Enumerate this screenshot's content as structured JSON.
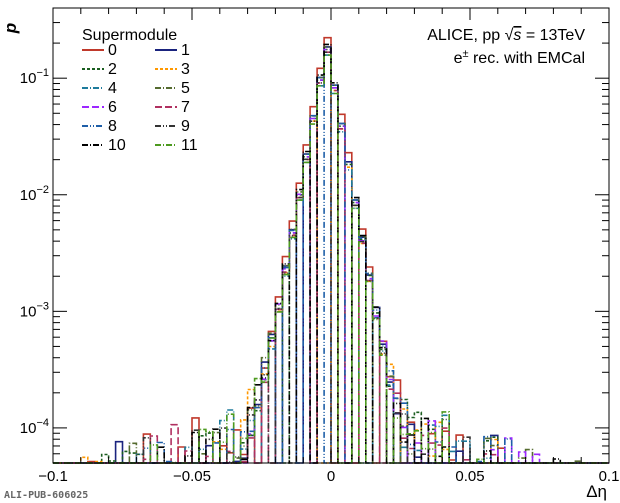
{
  "chart_data": {
    "type": "line",
    "title": "",
    "xlabel": "Δη",
    "ylabel": "p",
    "xlim": [
      -0.1,
      0.1
    ],
    "ylim": [
      5e-05,
      0.4
    ],
    "yscale": "log",
    "x_ticks": [
      -0.1,
      -0.05,
      0,
      0.05,
      0.1
    ],
    "x_tick_labels": [
      "−0.1",
      "−0.05",
      "0",
      "0.05",
      "0.1"
    ],
    "y_ticks": [
      0.0001,
      0.001,
      0.01,
      0.1
    ],
    "y_tick_base": "10",
    "y_tick_exponents": [
      "−4",
      "−3",
      "−2",
      "−1"
    ],
    "grid": false,
    "legend_title": "Supermodule",
    "legend_position": "top-left",
    "annotation_line1_prefix": "ALICE, pp ",
    "annotation_line1_sqrt": "√",
    "annotation_line1_s": "s",
    "annotation_line1_suffix": " = 13TeV",
    "annotation_line2_e": "e",
    "annotation_line2_sup": "±",
    "annotation_line2_rest": " rec. with EMCal",
    "publication_id": "ALI-PUB-606025",
    "peak_x": -0.0015,
    "series": [
      {
        "name": "0",
        "color": "#c0392b",
        "dash": "",
        "peak": 0.24
      },
      {
        "name": "1",
        "color": "#1a237e",
        "dash": "",
        "peak": 0.2
      },
      {
        "name": "2",
        "color": "#1b5e20",
        "dash": "3,2",
        "peak": 0.19
      },
      {
        "name": "3",
        "color": "#ff9800",
        "dash": "3,2",
        "peak": 0.18
      },
      {
        "name": "4",
        "color": "#1e7b9c",
        "dash": "6,2,1,2",
        "peak": 0.17
      },
      {
        "name": "5",
        "color": "#556b2f",
        "dash": "6,2,1,2",
        "peak": 0.2
      },
      {
        "name": "6",
        "color": "#9c27ff",
        "dash": "7,3",
        "peak": 0.19
      },
      {
        "name": "7",
        "color": "#b03060",
        "dash": "7,3",
        "peak": 0.18
      },
      {
        "name": "8",
        "color": "#1f5fa8",
        "dash": "6,2,1,2,1,2",
        "peak": 0.2
      },
      {
        "name": "9",
        "color": "#333333",
        "dash": "6,2,1,2,1,2",
        "peak": 0.18
      },
      {
        "name": "10",
        "color": "#000000",
        "dash": "6,2,1,2",
        "peak": 0.21
      },
      {
        "name": "11",
        "color": "#4d9a1f",
        "dash": "6,2,1,2",
        "peak": 0.17
      }
    ]
  }
}
